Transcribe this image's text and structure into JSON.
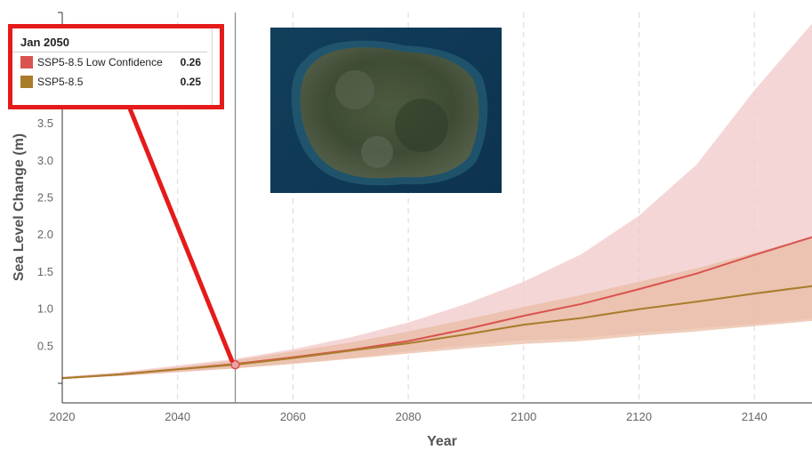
{
  "chart_data": {
    "type": "line",
    "xlabel": "Year",
    "ylabel": "Sea Level Change (m)",
    "xlim": [
      2020,
      2150
    ],
    "ylim": [
      0,
      5.0
    ],
    "x_ticks": [
      "2020",
      "2040",
      "2060",
      "2080",
      "2100",
      "2120",
      "2140"
    ],
    "y_ticks": [
      "0.5",
      "1.0",
      "1.5",
      "2.0",
      "2.5",
      "3.0",
      "3.5"
    ],
    "grid": "vertical dashed",
    "series": [
      {
        "name": "SSP5-8.5 Low Confidence",
        "color": "#d9534f",
        "x": [
          2020,
          2030,
          2040,
          2050,
          2060,
          2070,
          2080,
          2090,
          2100,
          2110,
          2120,
          2130,
          2140,
          2150
        ],
        "values": [
          0.07,
          0.12,
          0.19,
          0.26,
          0.35,
          0.45,
          0.57,
          0.73,
          0.91,
          1.07,
          1.27,
          1.48,
          1.73,
          1.97
        ],
        "band_low": [
          0.06,
          0.1,
          0.15,
          0.2,
          0.27,
          0.34,
          0.43,
          0.51,
          0.58,
          0.61,
          0.68,
          0.74,
          0.8,
          0.87
        ],
        "band_high": [
          0.09,
          0.15,
          0.24,
          0.33,
          0.46,
          0.62,
          0.82,
          1.07,
          1.37,
          1.74,
          2.26,
          2.95,
          3.95,
          4.85
        ]
      },
      {
        "name": "SSP5-8.5",
        "color": "#a97c2a",
        "x": [
          2020,
          2030,
          2040,
          2050,
          2060,
          2070,
          2080,
          2090,
          2100,
          2110,
          2120,
          2130,
          2140,
          2150
        ],
        "values": [
          0.07,
          0.12,
          0.19,
          0.25,
          0.34,
          0.44,
          0.54,
          0.66,
          0.79,
          0.88,
          1.0,
          1.1,
          1.21,
          1.31
        ],
        "band_low": [
          0.06,
          0.1,
          0.15,
          0.2,
          0.26,
          0.33,
          0.4,
          0.47,
          0.53,
          0.57,
          0.64,
          0.7,
          0.77,
          0.84
        ],
        "band_high": [
          0.08,
          0.14,
          0.22,
          0.31,
          0.43,
          0.55,
          0.7,
          0.86,
          1.03,
          1.19,
          1.37,
          1.55,
          1.76,
          1.97
        ]
      }
    ],
    "hover_year": 2050,
    "hover_value": 0.25
  },
  "tooltip": {
    "title": "Jan 2050",
    "rows": [
      {
        "label": "SSP5-8.5 Low Confidence",
        "value": "0.26",
        "color": "#d9534f"
      },
      {
        "label": "SSP5-8.5",
        "value": "0.25",
        "color": "#a97c2a"
      }
    ]
  },
  "colors": {
    "band_low_confidence": "#f2c8c8",
    "band_ssp": "#e8b9a0",
    "annotation": "#e51b1b",
    "crosshair": "#888888"
  },
  "image": {
    "subject": "satellite island photo"
  }
}
